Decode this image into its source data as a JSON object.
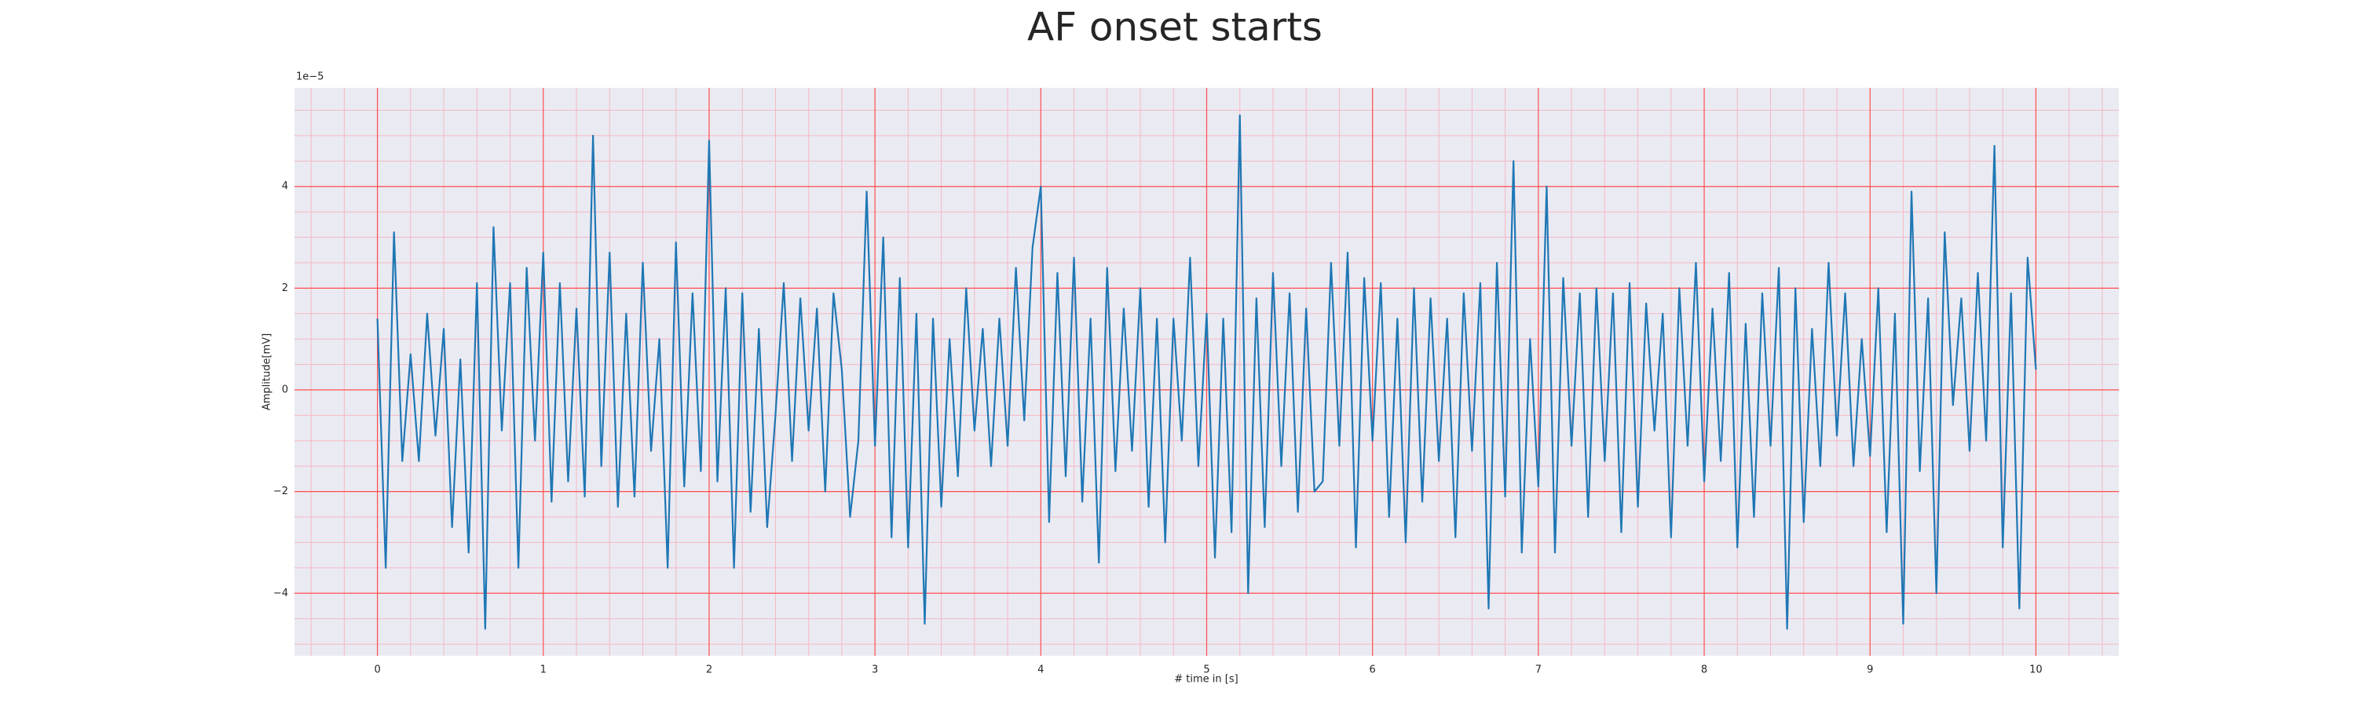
{
  "chart_data": {
    "type": "line",
    "title": "AF onset starts",
    "xlabel": "# time in [s]",
    "ylabel": "Amplitude[mV]",
    "y_offset_label": "1e−5",
    "color": "#1f77b4",
    "background": "#eaeaf2",
    "grid": true,
    "grid_color": "#ff4d4d",
    "minor_grid_color": "#f4b8c4",
    "xlim": [
      -0.5,
      10.5
    ],
    "ylim": [
      -5.23,
      5.94
    ],
    "xticks": [
      0,
      1,
      2,
      3,
      4,
      5,
      6,
      7,
      8,
      9,
      10
    ],
    "yticks": [
      {
        "value": -4,
        "label": "−4"
      },
      {
        "value": -2,
        "label": "−2"
      },
      0,
      2,
      4
    ],
    "xminorticks": [
      -0.4,
      -0.2,
      0.2,
      0.4,
      0.6,
      0.8,
      1.2,
      1.4,
      1.6,
      1.8,
      2.2,
      2.4,
      2.6,
      2.8,
      3.2,
      3.4,
      3.6,
      3.8,
      4.2,
      4.4,
      4.6,
      4.8,
      5.2,
      5.4,
      5.6,
      5.8,
      6.2,
      6.4,
      6.6,
      6.8,
      7.2,
      7.4,
      7.6,
      7.8,
      8.2,
      8.4,
      8.6,
      8.8,
      9.2,
      9.4,
      9.6,
      9.8,
      10.2,
      10.4
    ],
    "yminorticks": [
      -5,
      -4.5,
      -3.5,
      -3,
      -2.5,
      -1.5,
      -1,
      -0.5,
      0.5,
      1,
      1.5,
      2.5,
      3,
      3.5,
      4.5,
      5,
      5.5
    ],
    "x": [
      0,
      0.05,
      0.1,
      0.15,
      0.2,
      0.25,
      0.3,
      0.35,
      0.4,
      0.45,
      0.5,
      0.55,
      0.6,
      0.65,
      0.7,
      0.75,
      0.8,
      0.85,
      0.9,
      0.95,
      1,
      1.05,
      1.1,
      1.15,
      1.2,
      1.25,
      1.3,
      1.35,
      1.4,
      1.45,
      1.5,
      1.55,
      1.6,
      1.65,
      1.7,
      1.75,
      1.8,
      1.85,
      1.9,
      1.95,
      2,
      2.05,
      2.1,
      2.15,
      2.2,
      2.25,
      2.3,
      2.35,
      2.4,
      2.45,
      2.5,
      2.55,
      2.6,
      2.65,
      2.7,
      2.75,
      2.8,
      2.85,
      2.9,
      2.95,
      3,
      3.05,
      3.1,
      3.15,
      3.2,
      3.25,
      3.3,
      3.35,
      3.4,
      3.45,
      3.5,
      3.55,
      3.6,
      3.65,
      3.7,
      3.75,
      3.8,
      3.85,
      3.9,
      3.95,
      4,
      4.05,
      4.1,
      4.15,
      4.2,
      4.25,
      4.3,
      4.35,
      4.4,
      4.45,
      4.5,
      4.55,
      4.6,
      4.65,
      4.7,
      4.75,
      4.8,
      4.85,
      4.9,
      4.95,
      5,
      5.05,
      5.1,
      5.15,
      5.2,
      5.25,
      5.3,
      5.35,
      5.4,
      5.45,
      5.5,
      5.55,
      5.6,
      5.65,
      5.7,
      5.75,
      5.8,
      5.85,
      5.9,
      5.95,
      6,
      6.05,
      6.1,
      6.15,
      6.2,
      6.25,
      6.3,
      6.35,
      6.4,
      6.45,
      6.5,
      6.55,
      6.6,
      6.65,
      6.7,
      6.75,
      6.8,
      6.85,
      6.9,
      6.95,
      7,
      7.05,
      7.1,
      7.15,
      7.2,
      7.25,
      7.3,
      7.35,
      7.4,
      7.45,
      7.5,
      7.55,
      7.6,
      7.65,
      7.7,
      7.75,
      7.8,
      7.85,
      7.9,
      7.95,
      8,
      8.05,
      8.1,
      8.15,
      8.2,
      8.25,
      8.3,
      8.35,
      8.4,
      8.45,
      8.5,
      8.55,
      8.6,
      8.65,
      8.7,
      8.75,
      8.8,
      8.85,
      8.9,
      8.95,
      9,
      9.05,
      9.1,
      9.15,
      9.2,
      9.25,
      9.3,
      9.35,
      9.4,
      9.45,
      9.5,
      9.55,
      9.6,
      9.65,
      9.7,
      9.75,
      9.8,
      9.85,
      9.9,
      9.95,
      10
    ],
    "values": [
      1.4,
      -3.5,
      3.1,
      -1.4,
      0.7,
      -1.4,
      1.5,
      -0.9,
      1.2,
      -2.7,
      0.6,
      -3.2,
      2.1,
      -4.7,
      3.2,
      -0.8,
      2.1,
      -3.5,
      2.4,
      -1.0,
      2.7,
      -2.2,
      2.1,
      -1.8,
      1.6,
      -2.1,
      5.0,
      -1.5,
      2.7,
      -2.3,
      1.5,
      -2.1,
      2.5,
      -1.2,
      1.0,
      -3.5,
      2.9,
      -1.9,
      1.9,
      -1.6,
      4.9,
      -1.8,
      2.0,
      -3.5,
      1.9,
      -2.4,
      1.2,
      -2.7,
      -0.5,
      2.1,
      -1.4,
      1.8,
      -0.8,
      1.6,
      -2.0,
      1.9,
      0.4,
      -2.5,
      -1.0,
      3.9,
      -1.1,
      3.0,
      -2.9,
      2.2,
      -3.1,
      1.5,
      -4.6,
      1.4,
      -2.3,
      1.0,
      -1.7,
      2.0,
      -0.8,
      1.2,
      -1.5,
      1.4,
      -1.1,
      2.4,
      -0.6,
      2.8,
      4.0,
      -2.6,
      2.3,
      -1.7,
      2.6,
      -2.2,
      1.4,
      -3.4,
      2.4,
      -1.6,
      1.6,
      -1.2,
      2.0,
      -2.3,
      1.4,
      -3.0,
      1.4,
      -1.0,
      2.6,
      -1.5,
      1.5,
      -3.3,
      1.4,
      -2.8,
      5.4,
      -4.0,
      1.8,
      -2.7,
      2.3,
      -1.5,
      1.9,
      -2.4,
      1.6,
      -2.0,
      -1.8,
      2.5,
      -1.1,
      2.7,
      -3.1,
      2.2,
      -1.0,
      2.1,
      -2.5,
      1.4,
      -3.0,
      2.0,
      -2.2,
      1.8,
      -1.4,
      1.4,
      -2.9,
      1.9,
      -1.2,
      2.1,
      -4.3,
      2.5,
      -2.1,
      4.5,
      -3.2,
      1.0,
      -1.9,
      4.0,
      -3.2,
      2.2,
      -1.1,
      1.9,
      -2.5,
      2.0,
      -1.4,
      1.9,
      -2.8,
      2.1,
      -2.3,
      1.7,
      -0.8,
      1.5,
      -2.9,
      2.0,
      -1.1,
      2.5,
      -1.8,
      1.6,
      -1.4,
      2.3,
      -3.1,
      1.3,
      -2.5,
      1.9,
      -1.1,
      2.4,
      -4.7,
      2.0,
      -2.6,
      1.2,
      -1.5,
      2.5,
      -0.9,
      1.9,
      -1.5,
      1.0,
      -1.3,
      2.0,
      -2.8,
      1.5,
      -4.6,
      3.9,
      -1.6,
      1.8,
      -4.0,
      3.1,
      -0.3,
      1.8,
      -1.2,
      2.3,
      -1.0,
      4.8,
      -3.1,
      1.9,
      -4.3,
      2.6,
      0.4
    ]
  }
}
